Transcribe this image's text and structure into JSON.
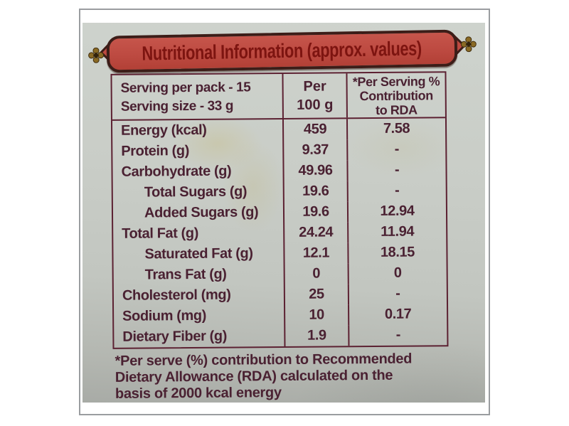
{
  "banner": {
    "title": "Nutritional Information (approx. values)"
  },
  "table": {
    "header": {
      "serving_per_pack": "Serving per pack - 15",
      "serving_size": "Serving size - 33 g",
      "per_col_line1": "Per",
      "per_col_line2": "100 g",
      "rda_col_line1": "*Per Serving %",
      "rda_col_line2": "Contribution",
      "rda_col_line3": "to RDA"
    },
    "rows": [
      {
        "label": "Energy (kcal)",
        "indent": false,
        "per_100g": "459",
        "rda_percent": "7.58"
      },
      {
        "label": "Protein (g)",
        "indent": false,
        "per_100g": "9.37",
        "rda_percent": "-"
      },
      {
        "label": "Carbohydrate (g)",
        "indent": false,
        "per_100g": "49.96",
        "rda_percent": "-"
      },
      {
        "label": "Total Sugars (g)",
        "indent": true,
        "per_100g": "19.6",
        "rda_percent": "-"
      },
      {
        "label": "Added Sugars (g)",
        "indent": true,
        "per_100g": "19.6",
        "rda_percent": "12.94"
      },
      {
        "label": "Total Fat (g)",
        "indent": false,
        "per_100g": "24.24",
        "rda_percent": "11.94"
      },
      {
        "label": "Saturated Fat (g)",
        "indent": true,
        "per_100g": "12.1",
        "rda_percent": "18.15"
      },
      {
        "label": "Trans Fat (g)",
        "indent": true,
        "per_100g": "0",
        "rda_percent": "0"
      },
      {
        "label": "Cholesterol (mg)",
        "indent": false,
        "per_100g": "25",
        "rda_percent": "-"
      },
      {
        "label": "Sodium (mg)",
        "indent": false,
        "per_100g": "10",
        "rda_percent": "0.17"
      },
      {
        "label": "Dietary Fiber (g)",
        "indent": false,
        "per_100g": "1.9",
        "rda_percent": "-"
      }
    ]
  },
  "footnote": {
    "lines": [
      "*Per serve (%) contribution to Recommended",
      "Dietary Allowance (RDA) calculated on the",
      "basis of 2000 kcal energy"
    ]
  },
  "colors": {
    "banner_fill": "#bd4a41",
    "banner_border": "#3c1d18",
    "banner_text": "#7d1410",
    "table_border": "#5c2132",
    "text": "#4a2132",
    "ornament_gold": "#8a6a24",
    "photo_top": "#ced3cd",
    "photo_bottom": "#a8aba6",
    "frame_border": "#9a9da0"
  }
}
